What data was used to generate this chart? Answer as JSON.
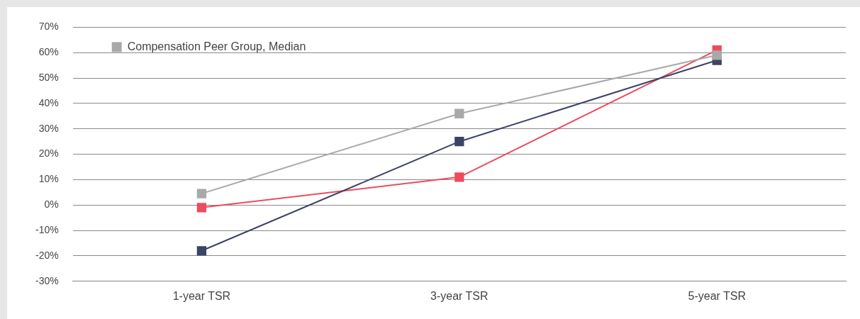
{
  "chart_data": {
    "type": "line",
    "categories": [
      "1-year TSR",
      "3-year TSR",
      "5-year TSR"
    ],
    "series": [
      {
        "color": "#ef4b5c",
        "values": [
          -1,
          11,
          61
        ]
      },
      {
        "color": "#3c4466",
        "values": [
          -18,
          25,
          57
        ]
      },
      {
        "name": "Compensation Peer Group, Median",
        "color": "#a9a9a9",
        "values": [
          4.5,
          36,
          59
        ]
      }
    ],
    "ylim": [
      -30,
      70
    ],
    "yticks": [
      {
        "value": -30,
        "label": "-30%"
      },
      {
        "value": -20,
        "label": "-20%"
      },
      {
        "value": -10,
        "label": "-10%"
      },
      {
        "value": 0,
        "label": "0%"
      },
      {
        "value": 10,
        "label": "10%"
      },
      {
        "value": 20,
        "label": "20%"
      },
      {
        "value": 30,
        "label": "30%"
      },
      {
        "value": 40,
        "label": "40%"
      },
      {
        "value": 50,
        "label": "50%"
      },
      {
        "value": 60,
        "label": "60%"
      },
      {
        "value": 70,
        "label": "70%"
      }
    ],
    "grid": "y",
    "legend": "top left",
    "marker": "square",
    "line_style": "solid"
  }
}
